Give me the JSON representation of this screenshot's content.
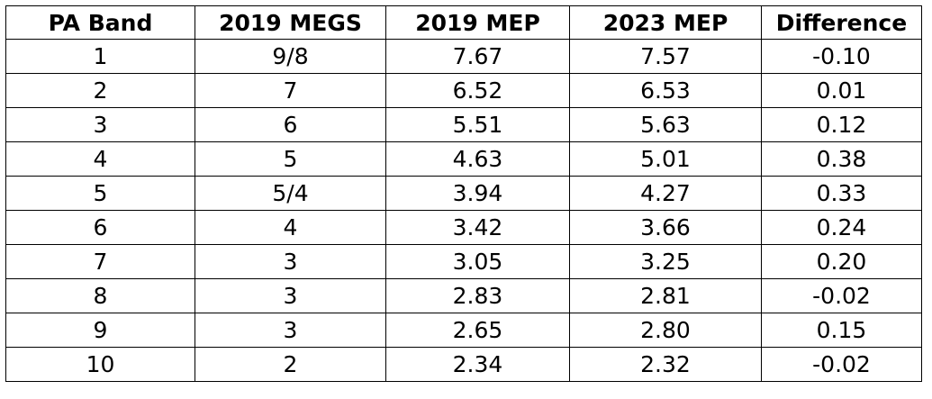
{
  "table": {
    "headers": [
      "PA Band",
      "2019 MEGS",
      "2019 MEP",
      "2023 MEP",
      "Difference"
    ],
    "rows": [
      [
        "1",
        "9/8",
        "7.67",
        "7.57",
        "-0.10"
      ],
      [
        "2",
        "7",
        "6.52",
        "6.53",
        "0.01"
      ],
      [
        "3",
        "6",
        "5.51",
        "5.63",
        "0.12"
      ],
      [
        "4",
        "5",
        "4.63",
        "5.01",
        "0.38"
      ],
      [
        "5",
        "5/4",
        "3.94",
        "4.27",
        "0.33"
      ],
      [
        "6",
        "4",
        "3.42",
        "3.66",
        "0.24"
      ],
      [
        "7",
        "3",
        "3.05",
        "3.25",
        "0.20"
      ],
      [
        "8",
        "3",
        "2.83",
        "2.81",
        "-0.02"
      ],
      [
        "9",
        "3",
        "2.65",
        "2.80",
        "0.15"
      ],
      [
        "10",
        "2",
        "2.34",
        "2.32",
        "-0.02"
      ]
    ]
  }
}
